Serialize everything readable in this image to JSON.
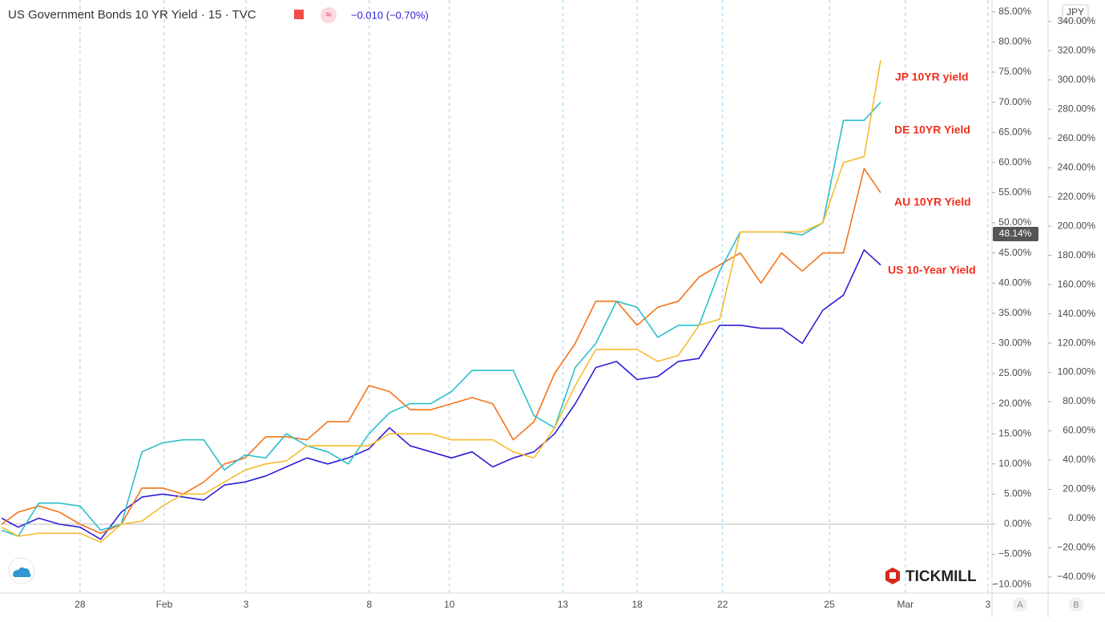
{
  "chart_data": {
    "type": "line",
    "title": "US Government Bonds 10 YR Yield · 15 · TVC",
    "change": "−0.010 (−0.70%)",
    "watermark": "TICKMILL",
    "y2_label": "JPY",
    "scale_buttons": [
      "A",
      "B"
    ],
    "current_value": {
      "value": 48.14,
      "label": "48.14%"
    },
    "x": [
      -1.9,
      -1.5,
      -1.0,
      -0.5,
      0,
      0.5,
      1.0,
      1.5,
      2.0,
      2.5,
      3.0,
      3.5,
      4.0,
      4.5,
      5.0,
      5.5,
      6.0,
      6.5,
      7.0,
      7.5,
      8.0,
      8.5,
      9.0,
      9.5,
      10.0,
      10.5,
      11.0,
      11.5,
      12.0,
      12.5,
      13.0,
      13.5,
      14.0,
      14.5,
      15.0,
      15.5,
      16.0,
      16.5,
      17.0,
      17.5,
      18.0,
      18.5,
      19.0,
      19.4
    ],
    "xlim": [
      -1.94,
      22.1
    ],
    "xticks": [
      {
        "value": 0,
        "label": "28"
      },
      {
        "value": 2.04,
        "label": "Feb"
      },
      {
        "value": 4.02,
        "label": "3"
      },
      {
        "value": 7.01,
        "label": "8"
      },
      {
        "value": 8.95,
        "label": "10"
      },
      {
        "value": 11.7,
        "label": "13"
      },
      {
        "value": 13.5,
        "label": "18"
      },
      {
        "value": 15.57,
        "label": "22"
      },
      {
        "value": 18.16,
        "label": "25"
      },
      {
        "value": 20.0,
        "label": "Mar"
      },
      {
        "value": 22.0,
        "label": "3"
      }
    ],
    "ylim": [
      -11.44,
      86.97
    ],
    "yticks": [
      {
        "value": -10,
        "label": "−10.00%"
      },
      {
        "value": -5,
        "label": "−5.00%"
      },
      {
        "value": 0,
        "label": "0.00%"
      },
      {
        "value": 5,
        "label": "5.00%"
      },
      {
        "value": 10,
        "label": "10.00%"
      },
      {
        "value": 15,
        "label": "15.00%"
      },
      {
        "value": 20,
        "label": "20.00%"
      },
      {
        "value": 25,
        "label": "25.00%"
      },
      {
        "value": 30,
        "label": "30.00%"
      },
      {
        "value": 35,
        "label": "35.00%"
      },
      {
        "value": 40,
        "label": "40.00%"
      },
      {
        "value": 45,
        "label": "45.00%"
      },
      {
        "value": 50,
        "label": "50.00%"
      },
      {
        "value": 55,
        "label": "55.00%"
      },
      {
        "value": 60,
        "label": "60.00%"
      },
      {
        "value": 65,
        "label": "65.00%"
      },
      {
        "value": 70,
        "label": "70.00%"
      },
      {
        "value": 75,
        "label": "75.00%"
      },
      {
        "value": 80,
        "label": "80.00%"
      },
      {
        "value": 85,
        "label": "85.00%"
      }
    ],
    "y2lim": [
      -51.0,
      354.7
    ],
    "y2ticks": [
      {
        "value": -40,
        "label": "−40.00%"
      },
      {
        "value": -20,
        "label": "−20.00%"
      },
      {
        "value": 0,
        "label": "0.00%"
      },
      {
        "value": 20,
        "label": "20.00%"
      },
      {
        "value": 40,
        "label": "40.00%"
      },
      {
        "value": 60,
        "label": "60.00%"
      },
      {
        "value": 80,
        "label": "80.00%"
      },
      {
        "value": 100,
        "label": "100.00%"
      },
      {
        "value": 120,
        "label": "120.00%"
      },
      {
        "value": 140,
        "label": "140.00%"
      },
      {
        "value": 160,
        "label": "160.00%"
      },
      {
        "value": 180,
        "label": "180.00%"
      },
      {
        "value": 200,
        "label": "200.00%"
      },
      {
        "value": 220,
        "label": "220.00%"
      },
      {
        "value": 240,
        "label": "240.00%"
      },
      {
        "value": 260,
        "label": "260.00%"
      },
      {
        "value": 280,
        "label": "280.00%"
      },
      {
        "value": 300,
        "label": "300.00%"
      },
      {
        "value": 320,
        "label": "320.00%"
      },
      {
        "value": 340,
        "label": "340.00%"
      }
    ],
    "grid": true,
    "series": [
      {
        "name": "US 10-Year Yield",
        "color": "#2d1fd6",
        "values": [
          1,
          -0.5,
          1,
          0,
          -0.5,
          -2.5,
          2,
          4.5,
          5,
          4.5,
          4,
          6.5,
          7,
          8,
          9.5,
          11,
          10,
          11,
          12.5,
          16,
          13,
          12,
          11,
          12,
          9.5,
          11,
          12,
          15,
          20,
          26,
          27,
          24,
          24.5,
          27,
          27.5,
          33,
          33,
          32.5,
          32.5,
          30,
          35.5,
          38,
          45.5,
          43
        ]
      },
      {
        "name": "AU 10YR Yield",
        "color": "#f5731a",
        "values": [
          0,
          2,
          3,
          2,
          0,
          -1.5,
          0,
          6,
          6,
          5,
          7,
          10,
          11,
          14.5,
          14.5,
          14,
          17,
          17,
          23,
          22,
          19,
          19,
          20,
          21,
          20,
          14,
          17,
          25,
          30,
          37,
          37,
          33,
          36,
          37,
          41,
          43,
          45,
          40,
          45,
          42,
          45,
          45,
          59,
          55
        ]
      },
      {
        "name": "DE 10YR Yield",
        "color": "#2bbfcc",
        "values": [
          -1,
          -2,
          3.5,
          3.5,
          3,
          -1,
          0,
          12,
          13.5,
          14,
          14,
          9,
          11.5,
          11,
          15,
          13,
          12,
          10,
          15,
          18.5,
          20,
          20,
          22,
          25.5,
          25.5,
          25.5,
          18,
          16,
          26,
          30,
          37,
          36,
          31,
          33,
          33,
          42,
          48.5,
          48.5,
          48.5,
          48,
          50,
          67,
          67,
          70
        ]
      },
      {
        "name": "JP 10YR yield",
        "color": "#f7bb2d",
        "values": [
          -0.5,
          -2,
          -1.5,
          -1.5,
          -1.5,
          -3,
          0,
          0.5,
          3,
          5,
          5,
          7,
          9,
          10,
          10.5,
          13,
          13,
          13,
          13,
          15,
          15,
          15,
          14,
          14,
          14,
          12,
          11,
          16,
          23,
          29,
          29,
          29,
          27,
          28,
          33,
          34,
          48.5,
          48.5,
          48.5,
          48.5,
          50,
          60,
          61,
          77
        ]
      }
    ]
  }
}
